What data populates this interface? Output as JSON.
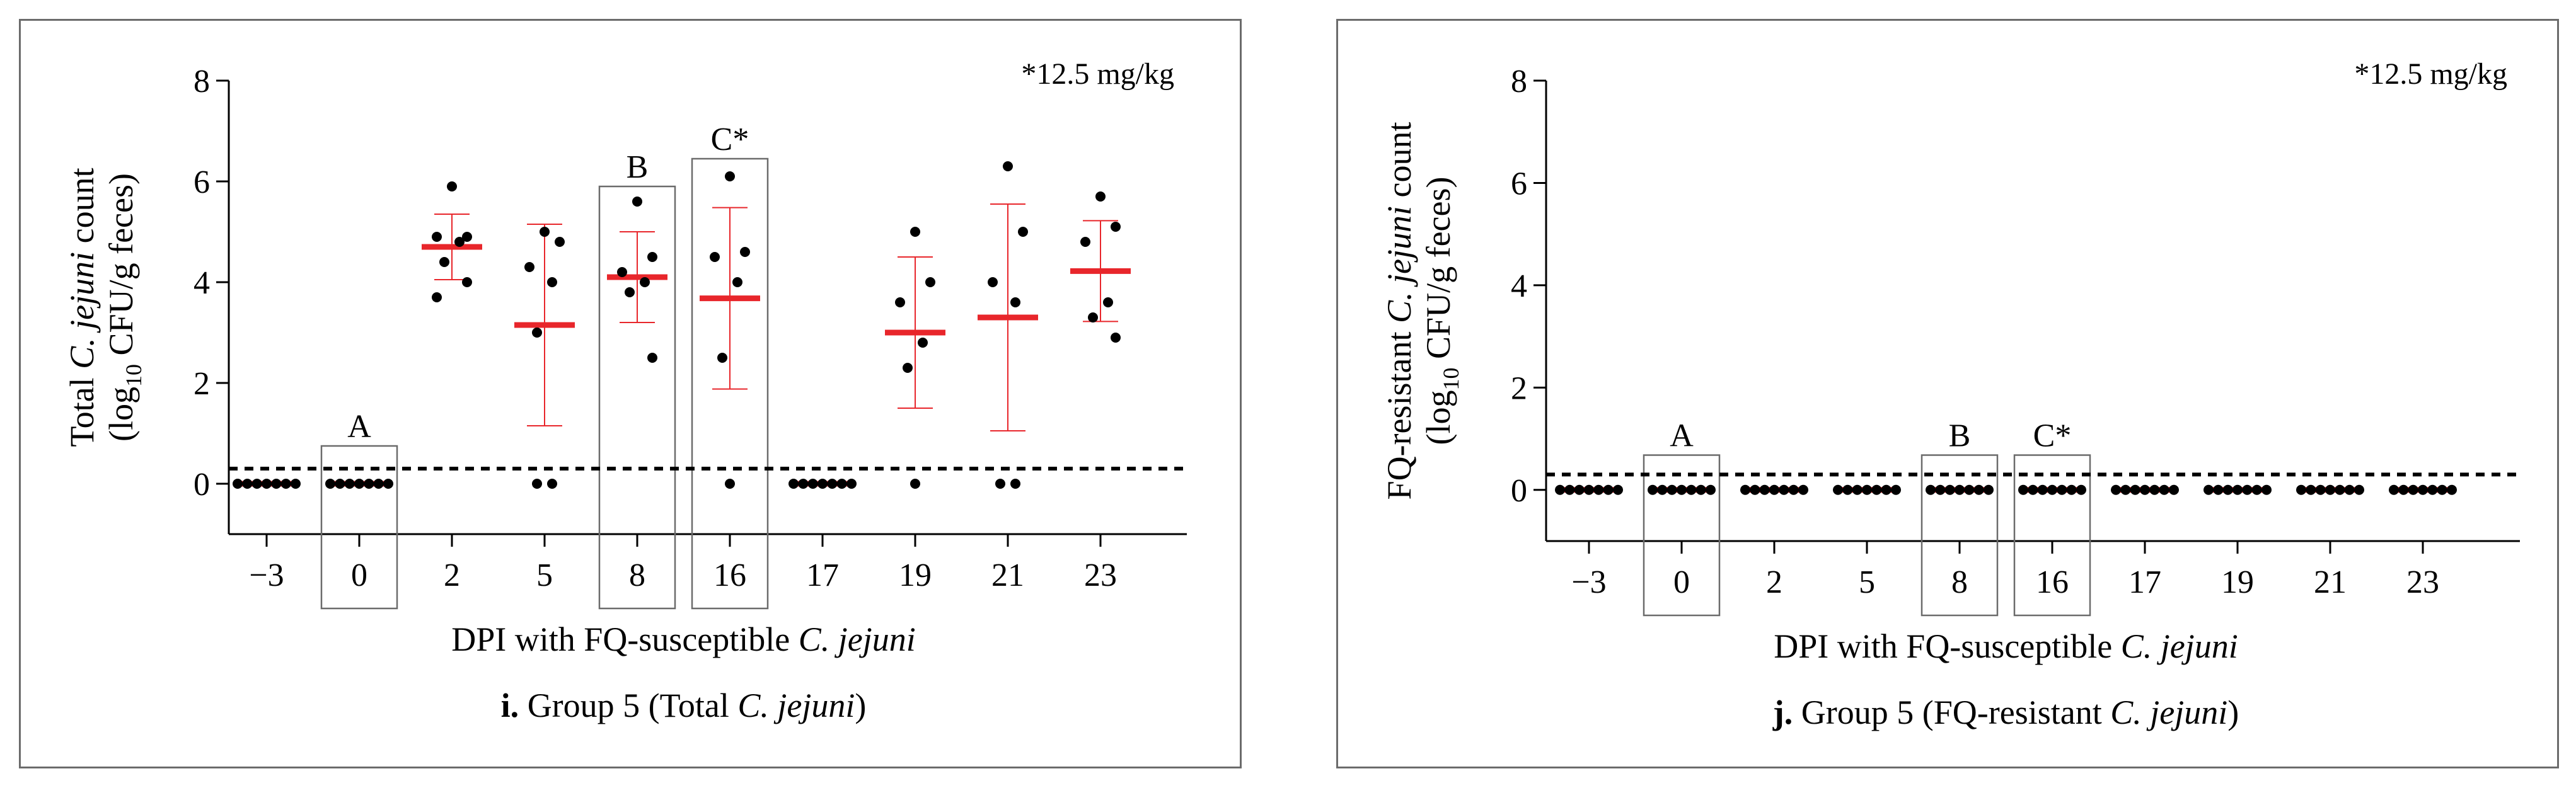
{
  "chart_data": [
    {
      "id": "i",
      "type": "scatter",
      "panel_letter": "i.",
      "panel_title_pre": "Group 5 (Total ",
      "panel_title_italic": "C. jejuni",
      "panel_title_post": ")",
      "ylabel_line1_pre": "Total ",
      "ylabel_line1_italic": "C. jejuni",
      "ylabel_line1_post": " count",
      "ylabel_line2_pre": "(log",
      "ylabel_line2_sub": "10",
      "ylabel_line2_post": " CFU/g feces)",
      "xlabel_pre": "DPI with FQ-susceptible ",
      "xlabel_italic": "C. jejuni",
      "annotation": "*12.5 mg/kg",
      "ylim": [
        -1,
        8
      ],
      "yticks": [
        0,
        2,
        4,
        6,
        8
      ],
      "categories": [
        "−3",
        "0",
        "2",
        "5",
        "8",
        "16",
        "17",
        "19",
        "21",
        "23"
      ],
      "detection_limit": 0.3,
      "mean_color": "#e8262b",
      "points": [
        [
          0,
          0,
          0,
          0,
          0,
          0,
          0
        ],
        [
          0,
          0,
          0,
          0,
          0,
          0,
          0
        ],
        [
          5.9,
          4.9,
          4.9,
          4.8,
          4.4,
          4.0,
          3.7
        ],
        [
          5.0,
          4.8,
          4.3,
          4.0,
          3.0,
          0,
          0
        ],
        [
          5.6,
          4.5,
          4.2,
          4.0,
          3.8,
          2.5
        ],
        [
          6.1,
          4.6,
          4.5,
          4.0,
          2.5,
          0
        ],
        [
          0,
          0,
          0,
          0,
          0,
          0,
          0
        ],
        [
          5.0,
          4.0,
          3.6,
          2.8,
          2.3,
          0
        ],
        [
          6.3,
          5.0,
          4.0,
          3.6,
          0,
          0
        ],
        [
          5.7,
          5.1,
          4.8,
          3.6,
          3.3,
          2.9
        ]
      ],
      "means": [
        0,
        0,
        4.7,
        3.15,
        4.1,
        3.68,
        0,
        3.0,
        3.3,
        4.22
      ],
      "sd": [
        0,
        0,
        0.65,
        2.0,
        0.9,
        1.8,
        0,
        1.5,
        2.25,
        1.0
      ],
      "boxes": [
        {
          "label": "A",
          "index": 1,
          "top": 0.75
        },
        {
          "label": "B",
          "index": 4,
          "top": 5.9
        },
        {
          "label": "C*",
          "index": 5,
          "top": 6.45
        }
      ]
    },
    {
      "id": "j",
      "type": "scatter",
      "panel_letter": "j.",
      "panel_title_pre": "Group 5 (FQ-resistant ",
      "panel_title_italic": "C. jejuni",
      "panel_title_post": ")",
      "ylabel_line1_pre": "FQ-resistant ",
      "ylabel_line1_italic": "C. jejuni",
      "ylabel_line1_post": " count",
      "ylabel_line2_pre": "(log",
      "ylabel_line2_sub": "10",
      "ylabel_line2_post": " CFU/g feces)",
      "xlabel_pre": "DPI with FQ-susceptible ",
      "xlabel_italic": "C. jejuni",
      "annotation": "*12.5 mg/kg",
      "ylim": [
        -1,
        8
      ],
      "yticks": [
        0,
        2,
        4,
        6,
        8
      ],
      "categories": [
        "−3",
        "0",
        "2",
        "5",
        "8",
        "16",
        "17",
        "19",
        "21",
        "23"
      ],
      "detection_limit": 0.3,
      "mean_color": "#e8262b",
      "points": [
        [
          0,
          0,
          0,
          0,
          0,
          0,
          0
        ],
        [
          0,
          0,
          0,
          0,
          0,
          0,
          0
        ],
        [
          0,
          0,
          0,
          0,
          0,
          0,
          0
        ],
        [
          0,
          0,
          0,
          0,
          0,
          0,
          0
        ],
        [
          0,
          0,
          0,
          0,
          0,
          0,
          0
        ],
        [
          0,
          0,
          0,
          0,
          0,
          0,
          0
        ],
        [
          0,
          0,
          0,
          0,
          0,
          0,
          0
        ],
        [
          0,
          0,
          0,
          0,
          0,
          0,
          0
        ],
        [
          0,
          0,
          0,
          0,
          0,
          0,
          0
        ],
        [
          0,
          0,
          0,
          0,
          0,
          0,
          0
        ]
      ],
      "means": [
        0,
        0,
        0,
        0,
        0,
        0,
        0,
        0,
        0,
        0
      ],
      "sd": [
        0,
        0,
        0,
        0,
        0,
        0,
        0,
        0,
        0,
        0
      ],
      "boxes": [
        {
          "label": "A",
          "index": 1,
          "top": 0.68
        },
        {
          "label": "B",
          "index": 4,
          "top": 0.68
        },
        {
          "label": "C*",
          "index": 5,
          "top": 0.68
        }
      ]
    }
  ]
}
